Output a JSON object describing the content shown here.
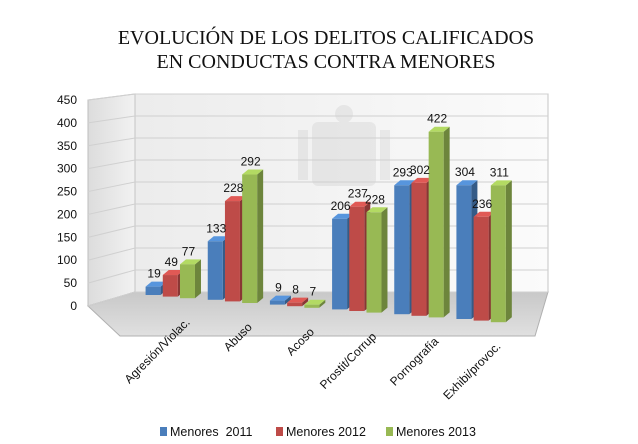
{
  "chart_data": {
    "type": "bar",
    "title_lines": [
      "EVOLUCIÓN DE LOS DELITOS CALIFICADOS",
      "EN CONDUCTAS CONTRA MENORES"
    ],
    "categories": [
      "Agresión/Violac.",
      "Abuso",
      "Acoso",
      "Prostit/Corrup",
      "Pornografía",
      "Exhibi/provoc."
    ],
    "series": [
      {
        "name": "Menores  2011",
        "color": "#4a7ebb",
        "values": [
          19,
          133,
          9,
          206,
          293,
          304
        ]
      },
      {
        "name": "Menores 2012",
        "color": "#be4b48",
        "values": [
          49,
          228,
          8,
          237,
          302,
          236
        ]
      },
      {
        "name": "Menores 2013",
        "color": "#98b954",
        "values": [
          77,
          292,
          7,
          228,
          422,
          311
        ]
      }
    ],
    "yticks": [
      "0",
      "50",
      "100",
      "150",
      "200",
      "250",
      "300",
      "350",
      "400",
      "450"
    ],
    "ylim": [
      0,
      450
    ],
    "grid": true,
    "three_d": true,
    "legend_position": "bottom"
  }
}
